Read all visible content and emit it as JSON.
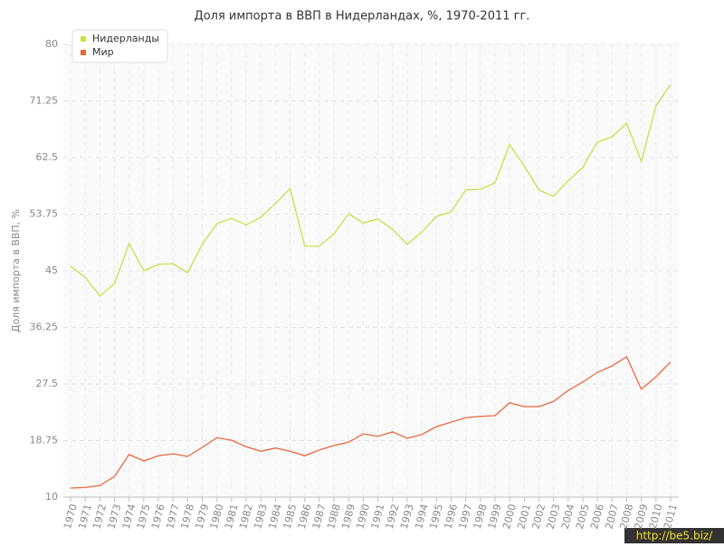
{
  "chart_data": {
    "type": "line",
    "title": "Доля импорта в ВВП в Нидерландах, %, 1970-2011 гг.",
    "y_label": "Доля импорта в ВВП, %",
    "watermark": "http://be5.biz/",
    "categories": [
      "1970",
      "1971",
      "1972",
      "1973",
      "1974",
      "1975",
      "1976",
      "1977",
      "1978",
      "1979",
      "1980",
      "1981",
      "1982",
      "1983",
      "1984",
      "1985",
      "1986",
      "1987",
      "1988",
      "1989",
      "1990",
      "1991",
      "1992",
      "1993",
      "1994",
      "1995",
      "1996",
      "1997",
      "1998",
      "1999",
      "2000",
      "2001",
      "2002",
      "2003",
      "2004",
      "2005",
      "2006",
      "2007",
      "2008",
      "2009",
      "2010",
      "2011"
    ],
    "series": [
      {
        "name": "Нидерланды",
        "color": "#c5e04a",
        "values": [
          45.7,
          44.0,
          41.1,
          43.0,
          49.2,
          45.0,
          46.0,
          46.1,
          44.7,
          49.1,
          52.3,
          53.1,
          52.1,
          53.3,
          55.4,
          57.7,
          48.8,
          48.8,
          50.7,
          53.8,
          52.4,
          53.0,
          51.4,
          49.1,
          51.0,
          53.4,
          54.1,
          57.5,
          57.6,
          58.6,
          64.5,
          61.2,
          57.5,
          56.5,
          58.9,
          61.0,
          64.9,
          65.7,
          67.8,
          61.9,
          70.5,
          73.8
        ]
      },
      {
        "name": "Мир",
        "color": "#e8683e",
        "values": [
          11.4,
          11.5,
          11.8,
          13.2,
          16.6,
          15.6,
          16.4,
          16.7,
          16.3,
          17.7,
          19.2,
          18.8,
          17.8,
          17.1,
          17.6,
          17.1,
          16.4,
          17.3,
          18.0,
          18.5,
          19.8,
          19.4,
          20.1,
          19.1,
          19.7,
          20.9,
          21.6,
          22.3,
          22.5,
          22.6,
          24.6,
          24.0,
          24.0,
          24.8,
          26.5,
          27.8,
          29.3,
          30.3,
          31.7,
          26.7,
          28.6,
          30.9
        ]
      }
    ],
    "ylim": [
      10,
      80
    ],
    "yticks": [
      10,
      18.75,
      27.5,
      36.25,
      45,
      53.75,
      62.5,
      71.25,
      80
    ],
    "grid": true,
    "legend": "top-left"
  }
}
